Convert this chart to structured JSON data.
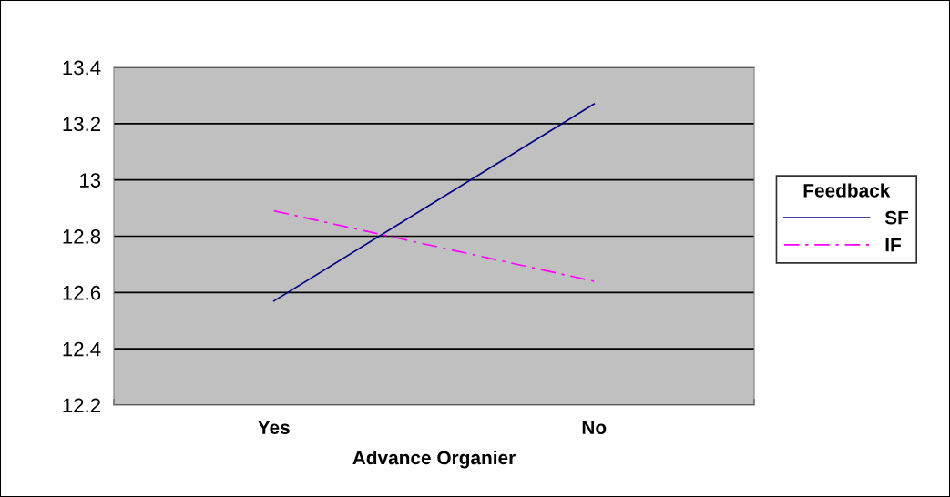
{
  "chart_data": {
    "type": "line",
    "xlabel": "Advance Organier",
    "legend_title": "Feedback",
    "categories": [
      "Yes",
      "No"
    ],
    "series": [
      {
        "name": "SF",
        "color": "#000080",
        "values": [
          12.57,
          13.27
        ],
        "line_style": "solid"
      },
      {
        "name": "IF",
        "color": "#ff00ff",
        "values": [
          12.89,
          12.64
        ],
        "line_style": "dashdot"
      }
    ],
    "ylim": [
      12.2,
      13.4
    ],
    "yticks": [
      12.2,
      12.4,
      12.6,
      12.8,
      13,
      13.2,
      13.4
    ],
    "grid": "y",
    "legend": "right",
    "marker": "none"
  }
}
